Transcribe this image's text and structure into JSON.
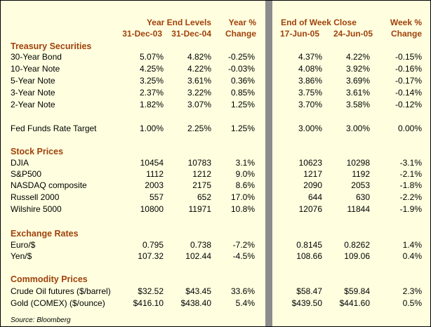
{
  "header": {
    "year_end_levels": "Year End Levels",
    "date_1": "31-Dec-03",
    "date_2": "31-Dec-04",
    "year_pct_1": "Year %",
    "year_pct_2": "Change",
    "end_of_week_close": "End of Week Close",
    "date_3": "17-Jun-05",
    "date_4": "24-Jun-05",
    "week_pct_1": "Week %",
    "week_pct_2": "Change"
  },
  "sections": [
    {
      "title": "Treasury Securities",
      "rows": [
        [
          "30-Year Bond",
          "5.07%",
          "4.82%",
          "-0.25%",
          "4.37%",
          "4.22%",
          "-0.15%"
        ],
        [
          "10-Year Note",
          "4.25%",
          "4.22%",
          "-0.03%",
          "4.08%",
          "3.92%",
          "-0.16%"
        ],
        [
          "5-Year Note",
          "3.25%",
          "3.61%",
          "0.36%",
          "3.86%",
          "3.69%",
          "-0.17%"
        ],
        [
          "3-Year Note",
          "2.37%",
          "3.22%",
          "0.85%",
          "3.75%",
          "3.61%",
          "-0.14%"
        ],
        [
          "2-Year Note",
          "1.82%",
          "3.07%",
          "1.25%",
          "3.70%",
          "3.58%",
          "-0.12%"
        ],
        [
          "Fed Funds Rate Target",
          "1.00%",
          "2.25%",
          "1.25%",
          "3.00%",
          "3.00%",
          "0.00%"
        ]
      ]
    },
    {
      "title": "Stock Prices",
      "rows": [
        [
          "DJIA",
          "10454",
          "10783",
          "3.1%",
          "10623",
          "10298",
          "-3.1%"
        ],
        [
          "S&P500",
          "1112",
          "1212",
          "9.0%",
          "1217",
          "1192",
          "-2.1%"
        ],
        [
          "NASDAQ composite",
          "2003",
          "2175",
          "8.6%",
          "2090",
          "2053",
          "-1.8%"
        ],
        [
          "Russell 2000",
          "557",
          "652",
          "17.0%",
          "644",
          "630",
          "-2.2%"
        ],
        [
          "Wilshire 5000",
          "10800",
          "11971",
          "10.8%",
          "12076",
          "11844",
          "-1.9%"
        ]
      ]
    },
    {
      "title": "Exchange Rates",
      "rows": [
        [
          "Euro/$",
          "0.795",
          "0.738",
          "-7.2%",
          "0.8145",
          "0.8262",
          "1.4%"
        ],
        [
          "Yen/$",
          "107.32",
          "102.44",
          "-4.5%",
          "108.66",
          "109.06",
          "0.4%"
        ]
      ]
    },
    {
      "title": "Commodity Prices",
      "rows": [
        [
          "Crude Oil futures ($/barrel)",
          "$32.52",
          "$43.45",
          "33.6%",
          "$58.47",
          "$59.84",
          "2.3%"
        ],
        [
          "Gold (COMEX) ($/ounce)",
          "$416.10",
          "$438.40",
          "5.4%",
          "$439.50",
          "$441.60",
          "0.5%"
        ]
      ]
    }
  ],
  "source": "Source: Bloomberg"
}
